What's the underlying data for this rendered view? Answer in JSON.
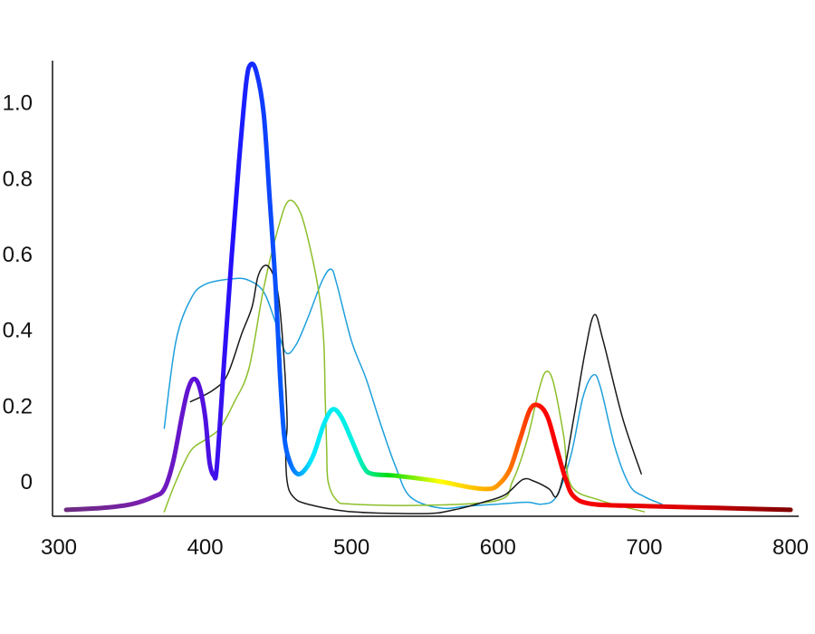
{
  "chart_data": {
    "type": "line",
    "title": "",
    "xlabel": "",
    "ylabel": "",
    "xlim": [
      300,
      800
    ],
    "ylim": [
      -0.05,
      1.14
    ],
    "grid": false,
    "x_ticks": [
      300,
      400,
      500,
      600,
      700,
      800
    ],
    "x_tick_labels": [
      "300",
      "400",
      "500",
      "600",
      "700",
      "800"
    ],
    "y_ticks": [
      0,
      0.2,
      0.4,
      0.6,
      0.8,
      1.0
    ],
    "y_tick_labels": [
      "0",
      "0.2",
      "0.4",
      "0.6",
      "0.8",
      "1.0"
    ],
    "series": [
      {
        "color": "#1ea0dc",
        "points": [
          [
            372,
            0.17
          ],
          [
            380,
            0.4
          ],
          [
            390,
            0.51
          ],
          [
            400,
            0.55
          ],
          [
            420,
            0.565
          ],
          [
            430,
            0.56
          ],
          [
            440,
            0.53
          ],
          [
            448,
            0.45
          ],
          [
            455,
            0.37
          ],
          [
            462,
            0.39
          ],
          [
            470,
            0.46
          ],
          [
            480,
            0.56
          ],
          [
            486,
            0.59
          ],
          [
            490,
            0.55
          ],
          [
            500,
            0.4
          ],
          [
            510,
            0.3
          ],
          [
            520,
            0.18
          ],
          [
            530,
            0.07
          ],
          [
            540,
            -0.01
          ],
          [
            560,
            -0.04
          ],
          [
            580,
            -0.035
          ],
          [
            600,
            -0.03
          ],
          [
            620,
            -0.025
          ],
          [
            630,
            -0.03
          ],
          [
            640,
            -0.01
          ],
          [
            650,
            0.1
          ],
          [
            658,
            0.25
          ],
          [
            665,
            0.31
          ],
          [
            670,
            0.28
          ],
          [
            680,
            0.12
          ],
          [
            690,
            0.02
          ],
          [
            700,
            -0.01
          ],
          [
            712,
            -0.03
          ]
        ]
      },
      {
        "color": "#8cbf2a",
        "points": [
          [
            372,
            -0.05
          ],
          [
            380,
            0.03
          ],
          [
            390,
            0.11
          ],
          [
            400,
            0.14
          ],
          [
            410,
            0.17
          ],
          [
            420,
            0.24
          ],
          [
            430,
            0.33
          ],
          [
            440,
            0.54
          ],
          [
            450,
            0.7
          ],
          [
            457,
            0.77
          ],
          [
            465,
            0.74
          ],
          [
            472,
            0.64
          ],
          [
            478,
            0.52
          ],
          [
            481,
            0.4
          ],
          [
            482,
            0.25
          ],
          [
            483,
            0.12
          ],
          [
            484,
            0.03
          ],
          [
            490,
            -0.02
          ],
          [
            500,
            -0.03
          ],
          [
            550,
            -0.033
          ],
          [
            600,
            -0.02
          ],
          [
            610,
            0.03
          ],
          [
            620,
            0.14
          ],
          [
            628,
            0.27
          ],
          [
            633,
            0.32
          ],
          [
            638,
            0.29
          ],
          [
            645,
            0.15
          ],
          [
            650,
            0.02
          ],
          [
            670,
            -0.02
          ],
          [
            700,
            -0.05
          ]
        ]
      },
      {
        "color": "#1a1a1a",
        "points": [
          [
            390,
            0.24
          ],
          [
            405,
            0.27
          ],
          [
            415,
            0.31
          ],
          [
            425,
            0.42
          ],
          [
            432,
            0.49
          ],
          [
            436,
            0.57
          ],
          [
            441,
            0.6
          ],
          [
            446,
            0.58
          ],
          [
            450,
            0.52
          ],
          [
            453,
            0.4
          ],
          [
            455,
            0.28
          ],
          [
            456,
            0.18
          ],
          [
            455,
            0.12
          ],
          [
            456,
            0.03
          ],
          [
            460,
            -0.01
          ],
          [
            470,
            -0.03
          ],
          [
            500,
            -0.05
          ],
          [
            550,
            -0.055
          ],
          [
            570,
            -0.045
          ],
          [
            590,
            -0.025
          ],
          [
            605,
            -0.005
          ],
          [
            617,
            0.035
          ],
          [
            625,
            0.03
          ],
          [
            635,
            0.01
          ],
          [
            640,
            -0.01
          ],
          [
            645,
            0.05
          ],
          [
            652,
            0.2
          ],
          [
            660,
            0.38
          ],
          [
            666,
            0.47
          ],
          [
            672,
            0.4
          ],
          [
            685,
            0.2
          ],
          [
            698,
            0.05
          ]
        ]
      },
      {
        "color": "spectral",
        "points": [
          [
            305,
            -0.045
          ],
          [
            330,
            -0.04
          ],
          [
            350,
            -0.03
          ],
          [
            365,
            -0.01
          ],
          [
            372,
            0.01
          ],
          [
            378,
            0.08
          ],
          [
            384,
            0.2
          ],
          [
            388,
            0.27
          ],
          [
            392,
            0.3
          ],
          [
            396,
            0.28
          ],
          [
            400,
            0.2
          ],
          [
            403,
            0.08
          ],
          [
            406,
            0.045
          ],
          [
            408,
            0.07
          ],
          [
            413,
            0.35
          ],
          [
            418,
            0.62
          ],
          [
            423,
            0.87
          ],
          [
            428,
            1.08
          ],
          [
            431,
            1.13
          ],
          [
            435,
            1.11
          ],
          [
            440,
            1.0
          ],
          [
            444,
            0.78
          ],
          [
            448,
            0.55
          ],
          [
            451,
            0.32
          ],
          [
            454,
            0.15
          ],
          [
            458,
            0.08
          ],
          [
            463,
            0.05
          ],
          [
            468,
            0.06
          ],
          [
            474,
            0.1
          ],
          [
            481,
            0.18
          ],
          [
            487,
            0.22
          ],
          [
            493,
            0.2
          ],
          [
            500,
            0.14
          ],
          [
            508,
            0.07
          ],
          [
            514,
            0.05
          ],
          [
            530,
            0.045
          ],
          [
            560,
            0.03
          ],
          [
            580,
            0.015
          ],
          [
            593,
            0.01
          ],
          [
            600,
            0.02
          ],
          [
            608,
            0.06
          ],
          [
            615,
            0.14
          ],
          [
            622,
            0.22
          ],
          [
            628,
            0.23
          ],
          [
            634,
            0.2
          ],
          [
            640,
            0.12
          ],
          [
            646,
            0.04
          ],
          [
            652,
            -0.01
          ],
          [
            665,
            -0.03
          ],
          [
            700,
            -0.035
          ],
          [
            750,
            -0.04
          ],
          [
            800,
            -0.045
          ]
        ]
      }
    ]
  }
}
